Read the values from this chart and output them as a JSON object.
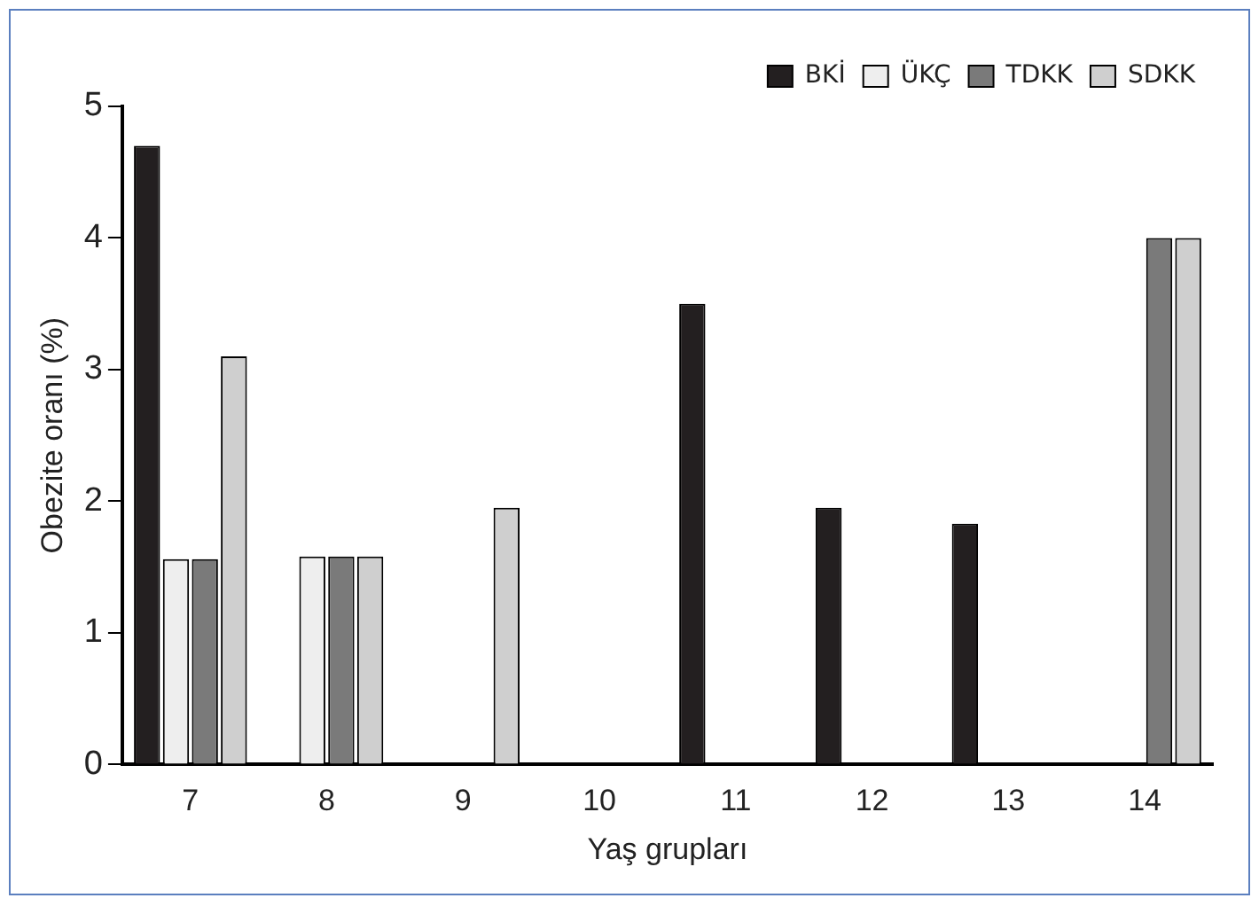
{
  "chart_data": {
    "type": "bar",
    "xlabel": "Yaş grupları",
    "ylabel": "Obezite oranı (%)",
    "categories": [
      "7",
      "8",
      "9",
      "10",
      "11",
      "12",
      "13",
      "14"
    ],
    "series": [
      {
        "name": "BKİ",
        "color": "#231f20",
        "values": [
          4.7,
          null,
          null,
          null,
          3.5,
          1.95,
          1.83,
          null
        ]
      },
      {
        "name": "ÜKÇ",
        "color": "#eeeeee",
        "values": [
          1.56,
          1.58,
          null,
          null,
          null,
          null,
          null,
          null
        ]
      },
      {
        "name": "TDKK",
        "color": "#7a7a7a",
        "values": [
          1.56,
          1.58,
          null,
          null,
          null,
          null,
          null,
          4.0
        ]
      },
      {
        "name": "SDKK",
        "color": "#cfcfcf",
        "values": [
          3.1,
          1.58,
          1.95,
          null,
          null,
          null,
          null,
          4.0
        ]
      }
    ],
    "ylim": [
      0,
      5
    ],
    "yticks": [
      0,
      1,
      2,
      3,
      4,
      5
    ],
    "grid": false,
    "legend": "top right"
  }
}
